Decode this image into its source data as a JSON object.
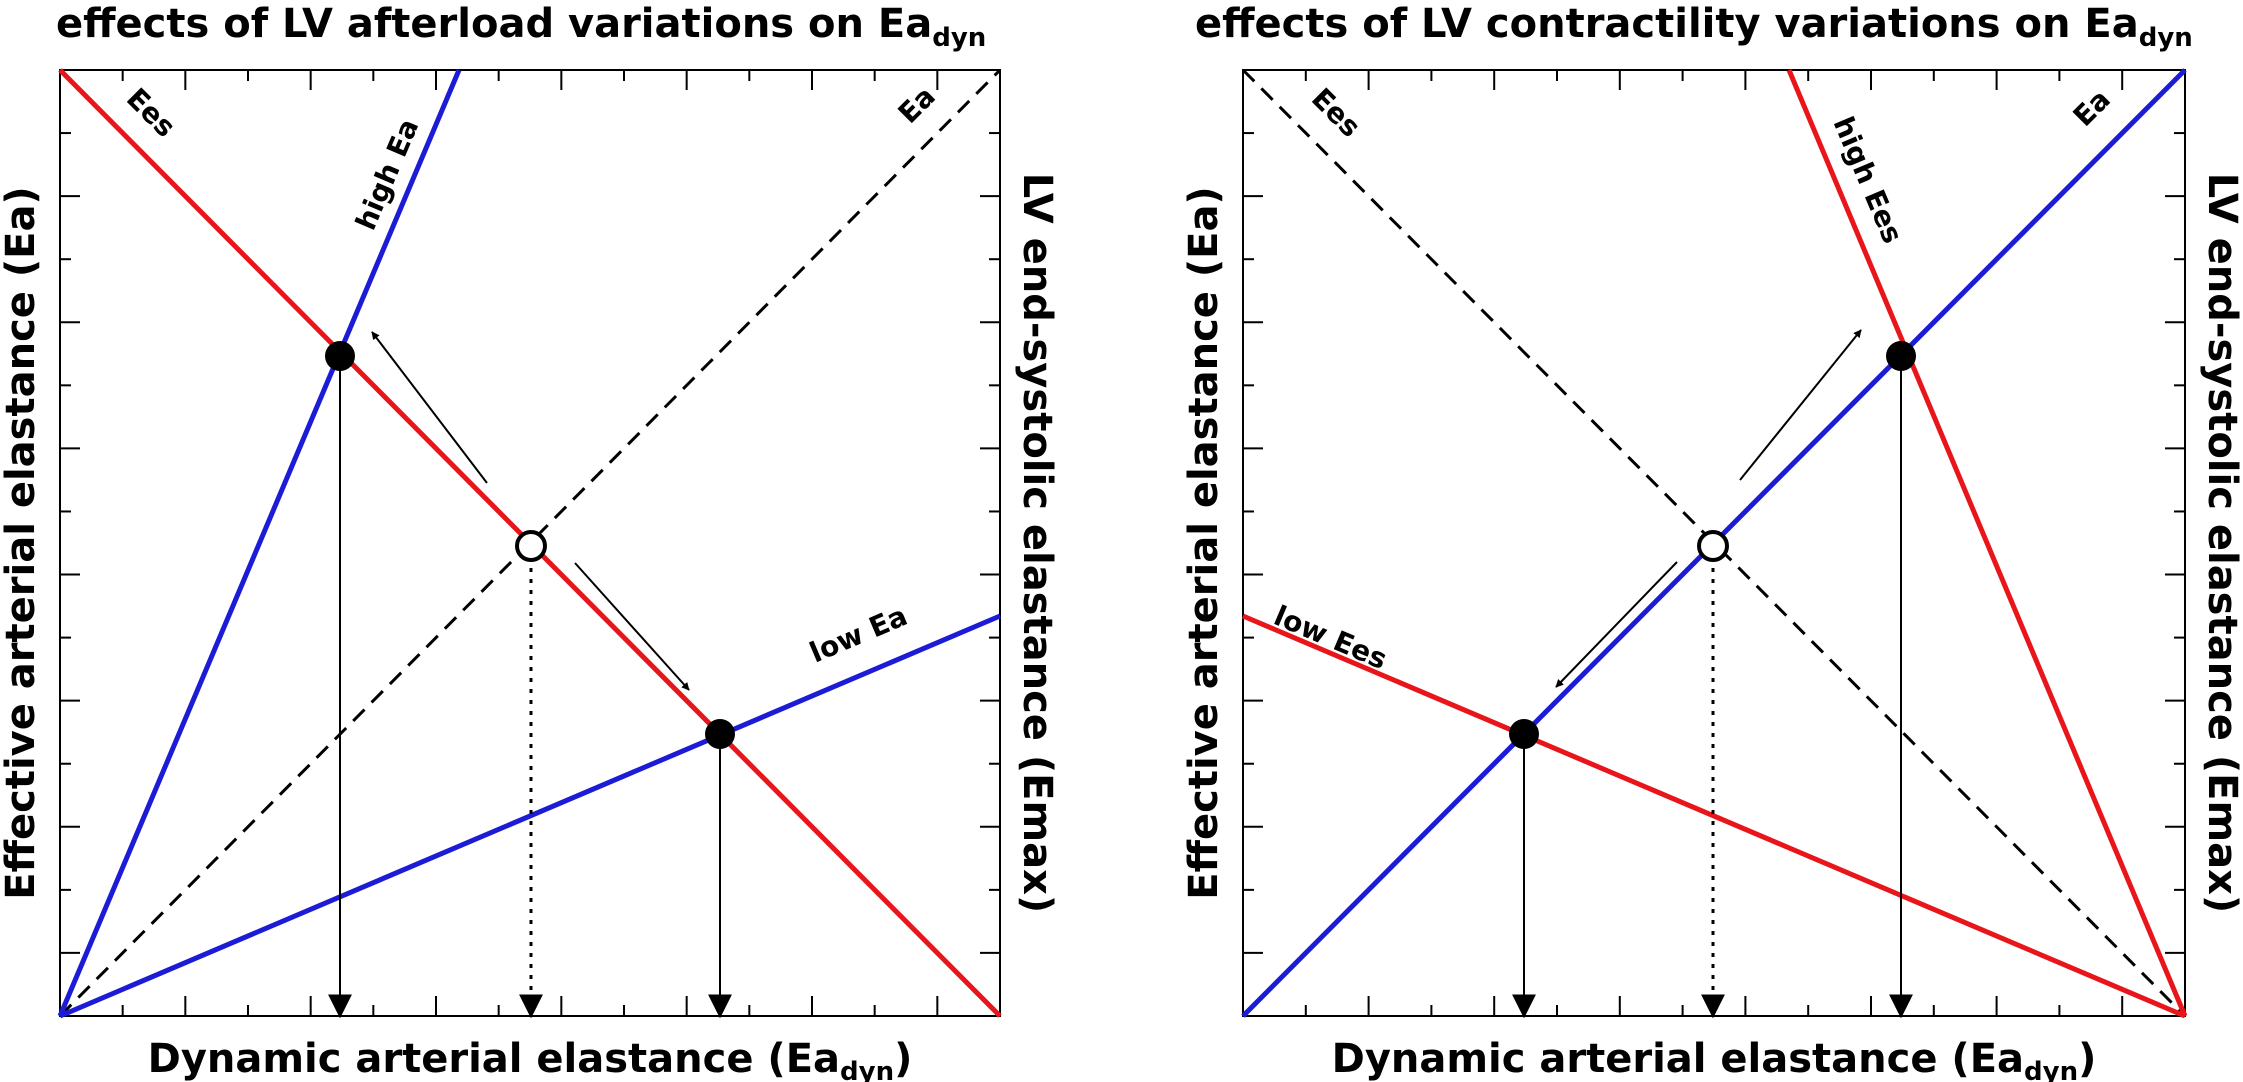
{
  "panels": [
    {
      "title": {
        "main": "effects of LV afterload variations on Ea",
        "sub": "dyn"
      },
      "xlabel": {
        "main": "Dynamic arterial elastance (Ea",
        "sub": "dyn",
        "end": ")"
      },
      "ylabel_left": "Effective arterial elastance (Ea)",
      "ylabel_right": "LV end-systolic elastance (Emax)",
      "line_labels": {
        "ees": "Ees",
        "ea": "Ea",
        "high": "high Ea",
        "low": "low Ea"
      }
    },
    {
      "title": {
        "main": "effects of LV contractility variations on Ea",
        "sub": "dyn"
      },
      "xlabel": {
        "main": "Dynamic arterial elastance (Ea",
        "sub": "dyn",
        "end": ")"
      },
      "ylabel_left": "Effective arterial elastance (Ea)",
      "ylabel_right": "LV end-systolic elastance (Emax)",
      "line_labels": {
        "ees": "Ees",
        "ea": "Ea",
        "high": "high Ees",
        "low": "low Ees"
      }
    }
  ],
  "colors": {
    "red": "#e8161b",
    "blue": "#1c1cd6",
    "black": "#000000"
  }
}
